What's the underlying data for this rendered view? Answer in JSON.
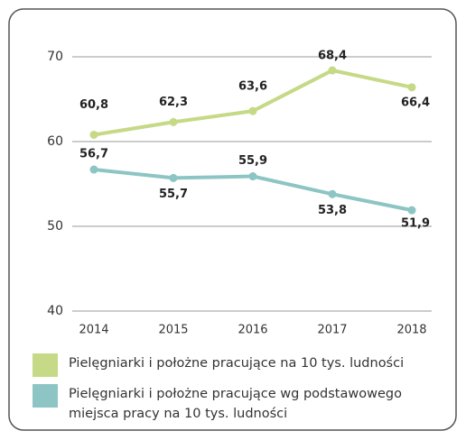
{
  "chart_data": {
    "type": "line",
    "categories": [
      "2014",
      "2015",
      "2016",
      "2017",
      "2018"
    ],
    "series": [
      {
        "name": "Pielęgniarki i położne pracujące na 10 tys. ludności",
        "color": "#c5d986",
        "values": [
          60.8,
          62.3,
          63.6,
          68.4,
          66.4
        ],
        "value_labels": [
          "60,8",
          "62,3",
          "63,6",
          "68,4",
          "66,4"
        ]
      },
      {
        "name": "Pielęgniarki i położne pracujące wg podstawowego miejsca pracy na 10 tys. ludności",
        "color": "#8cc5c3",
        "values": [
          56.7,
          55.7,
          55.9,
          53.8,
          51.9
        ],
        "value_labels": [
          "56,7",
          "55,7",
          "55,9",
          "53,8",
          "51,9"
        ]
      }
    ],
    "ylim": [
      40,
      70
    ],
    "yticks": [
      40,
      50,
      60,
      70
    ],
    "grid": true
  }
}
